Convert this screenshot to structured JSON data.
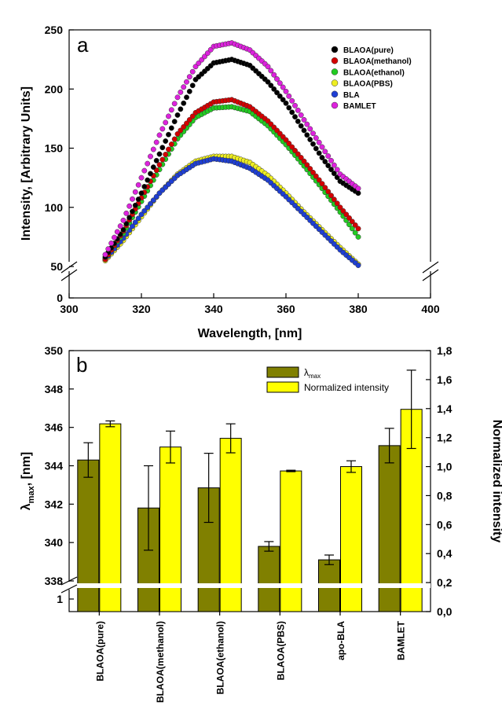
{
  "chart_data": [
    {
      "type": "scatter",
      "panel_label": "a",
      "xlabel": "Wavelength, [nm]",
      "ylabel": "Intensity, [Arbitrary Units]",
      "xlim": [
        300,
        400
      ],
      "xticks": [
        "300",
        "320",
        "340",
        "360",
        "380",
        "400"
      ],
      "yticks": [
        "0",
        "50",
        "100",
        "150",
        "200",
        "250"
      ],
      "ylim_lower": [
        0,
        5
      ],
      "ylim_upper": [
        50,
        250
      ],
      "axis_break": "y",
      "legend_position": "top-right",
      "x_sample": [
        310,
        315,
        320,
        325,
        330,
        335,
        340,
        345,
        350,
        355,
        360,
        365,
        370,
        375,
        380
      ],
      "series": [
        {
          "name": "BLAOA(pure)",
          "color": "#000000",
          "values": [
            58,
            81,
            112,
            145,
            178,
            208,
            222,
            225,
            220,
            206,
            188,
            165,
            142,
            122,
            112
          ]
        },
        {
          "name": "BLAOA(methanol)",
          "color": "#d40000",
          "values": [
            56,
            80,
            108,
            136,
            162,
            180,
            189,
            191,
            185,
            173,
            157,
            139,
            120,
            100,
            82
          ]
        },
        {
          "name": "BLAOA(ethanol)",
          "color": "#22cc22",
          "values": [
            57,
            78,
            105,
            132,
            158,
            176,
            184,
            185,
            181,
            169,
            153,
            135,
            116,
            96,
            75
          ]
        },
        {
          "name": "BLAOA(PBS)",
          "color": "#eeee22",
          "values": [
            55,
            72,
            92,
            112,
            128,
            139,
            143,
            143,
            138,
            127,
            112,
            96,
            81,
            66,
            52
          ]
        },
        {
          "name": "BLA",
          "color": "#1f3fd4",
          "values": [
            56,
            74,
            94,
            112,
            127,
            137,
            141,
            139,
            133,
            123,
            109,
            94,
            79,
            64,
            51
          ]
        },
        {
          "name": "BAMLET",
          "color": "#dd22dd",
          "values": [
            60,
            89,
            125,
            161,
            193,
            219,
            236,
            239,
            233,
            219,
            198,
            174,
            151,
            128,
            116
          ]
        }
      ]
    },
    {
      "type": "bar",
      "panel_label": "b",
      "categories": [
        "BLAOA(pure)",
        "BLAOA(methanol)",
        "BLAOA(ethanol)",
        "BLAOA(PBS)",
        "apo-BLA",
        "BAMLET"
      ],
      "ylabel_left": "λmax, [nm]",
      "ylabel_right": "Normalized intensity",
      "ylim_left": [
        338,
        350
      ],
      "yticks_left": [
        "1",
        "338",
        "340",
        "342",
        "344",
        "346",
        "348",
        "350"
      ],
      "ylim_right": [
        0,
        1.8
      ],
      "yticks_right": [
        "0,0",
        "0,2",
        "0,4",
        "0,6",
        "0,8",
        "1,0",
        "1,2",
        "1,4",
        "1,6",
        "1,8"
      ],
      "axis_break": "y-left",
      "legend_position": "top-right",
      "series": [
        {
          "name": "λmax",
          "legend_main": "λ",
          "legend_sub": "max",
          "color": "#808000",
          "axis": "left",
          "values": [
            344.3,
            341.8,
            342.85,
            339.8,
            339.1,
            345.05
          ],
          "errors": [
            0.9,
            2.2,
            1.8,
            0.25,
            0.25,
            0.9
          ]
        },
        {
          "name": "Normalized intensity",
          "color": "#ffff00",
          "axis": "right",
          "values": [
            1.295,
            1.135,
            1.195,
            0.97,
            1.0,
            1.395
          ],
          "errors": [
            0.02,
            0.11,
            0.1,
            0.005,
            0.04,
            0.27
          ]
        }
      ]
    }
  ]
}
